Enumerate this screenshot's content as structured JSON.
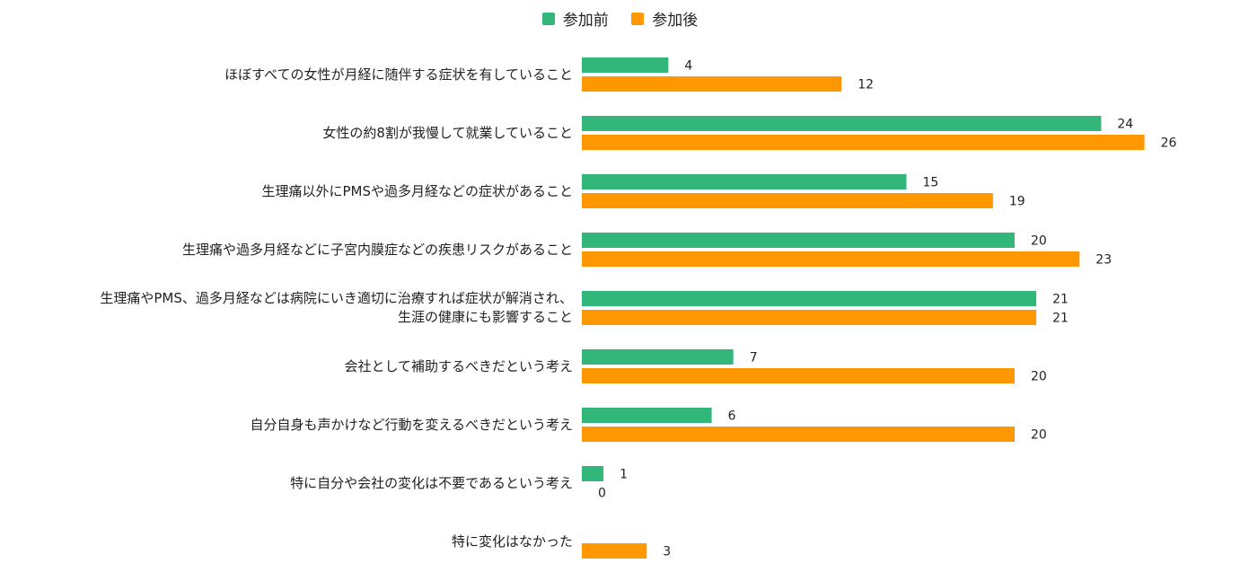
{
  "chart_data": {
    "type": "bar",
    "orientation": "horizontal",
    "categories": [
      "ほぼすべての女性が月経に随伴する症状を有していること",
      "女性の約8割が我慢して就業していること",
      "生理痛以外にPMSや過多月経などの症状があること",
      "生理痛や過多月経などに子宮内膜症などの疾患リスクがあること",
      "生理痛やPMS、過多月経などは病院にいき適切に治療すれば症状が解消され、\n生涯の健康にも影響すること",
      "会社として補助するべきだという考え",
      "自分自身も声かけなど行動を変えるべきだという考え",
      "特に自分や会社の変化は不要であるという考え",
      "特に変化はなかった"
    ],
    "series": [
      {
        "name": "参加前",
        "color": "#33b679",
        "values": [
          4,
          24,
          15,
          20,
          21,
          7,
          6,
          1,
          null
        ],
        "labels": [
          "4",
          "24",
          "15",
          "20",
          "21",
          "7",
          "6",
          "1",
          ""
        ]
      },
      {
        "name": "参加後",
        "color": "#ff9800",
        "values": [
          12,
          26,
          19,
          23,
          21,
          20,
          20,
          0,
          3
        ],
        "labels": [
          "12",
          "26",
          "19",
          "23",
          "21",
          "20",
          "20",
          "0",
          "3"
        ]
      }
    ],
    "xlim": [
      0,
      26
    ],
    "grid": false,
    "legend": "top-center",
    "title": "",
    "xlabel": "",
    "ylabel": ""
  }
}
